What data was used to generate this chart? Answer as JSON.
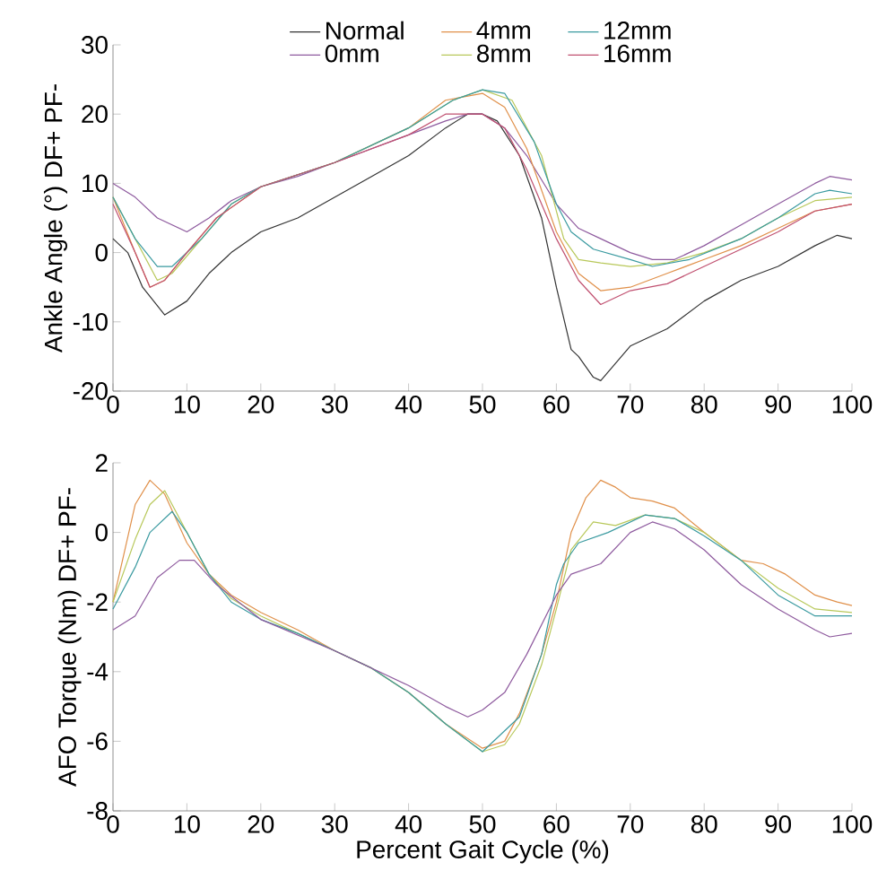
{
  "chart_data": [
    {
      "type": "line",
      "ylabel": "Ankle Angle (°) DF+ PF-",
      "xlim": [
        0,
        100
      ],
      "xticks": [
        0,
        10,
        20,
        30,
        40,
        50,
        60,
        70,
        80,
        90,
        100
      ],
      "ylim": [
        -20,
        30
      ],
      "yticks": [
        -20,
        -10,
        0,
        10,
        20,
        30
      ],
      "legend": "top",
      "line_style": "solid",
      "marker": "none",
      "series": [
        {
          "name": "Normal",
          "color": "#333333",
          "x": [
            0,
            2,
            4,
            7,
            10,
            13,
            16,
            20,
            25,
            30,
            35,
            40,
            45,
            48,
            50,
            52,
            55,
            58,
            60,
            62,
            63,
            65,
            66,
            68,
            70,
            75,
            80,
            85,
            90,
            95,
            98,
            100
          ],
          "values": [
            2,
            0,
            -5,
            -9,
            -7,
            -3,
            0,
            3,
            5,
            8,
            11,
            14,
            18,
            20,
            20,
            19,
            14,
            5,
            -5,
            -14,
            -15,
            -18,
            -18.5,
            -16,
            -13.5,
            -11,
            -7,
            -4,
            -2,
            1,
            2.5,
            2
          ]
        },
        {
          "name": "0mm",
          "color": "#8e5a9e",
          "x": [
            0,
            3,
            6,
            10,
            13,
            16,
            20,
            25,
            30,
            35,
            40,
            45,
            48,
            50,
            53,
            56,
            60,
            63,
            66,
            70,
            73,
            76,
            80,
            85,
            90,
            95,
            97,
            100
          ],
          "values": [
            10,
            8,
            5,
            3,
            5,
            7.5,
            9.5,
            11,
            13,
            15,
            17,
            19,
            20,
            20,
            18,
            14,
            7,
            3.5,
            2,
            0,
            -1,
            -1,
            1,
            4,
            7,
            10,
            11,
            10.5
          ]
        },
        {
          "name": "4mm",
          "color": "#e0904a",
          "x": [
            0,
            3,
            5,
            7,
            10,
            14,
            20,
            30,
            40,
            45,
            50,
            53,
            56,
            60,
            63,
            66,
            70,
            75,
            80,
            85,
            90,
            95,
            100
          ],
          "values": [
            8,
            0,
            -5,
            -4,
            0,
            5,
            9.5,
            13,
            18,
            22,
            23,
            21,
            15,
            3,
            -3,
            -5.5,
            -5,
            -3,
            -1,
            1,
            3.5,
            6,
            7
          ]
        },
        {
          "name": "8mm",
          "color": "#b8c85a",
          "x": [
            0,
            3,
            6,
            8,
            12,
            16,
            20,
            30,
            40,
            46,
            50,
            54,
            58,
            61,
            63,
            66,
            70,
            75,
            80,
            85,
            90,
            95,
            100
          ],
          "values": [
            8,
            2,
            -4,
            -3,
            2,
            7,
            9.5,
            13,
            18,
            22,
            23.5,
            22,
            14,
            2,
            -1,
            -1.5,
            -2,
            -1.5,
            0,
            2,
            5,
            7.5,
            8
          ]
        },
        {
          "name": "12mm",
          "color": "#3a9aa0",
          "x": [
            0,
            3,
            6,
            8,
            12,
            16,
            20,
            30,
            40,
            46,
            50,
            53,
            57,
            60,
            62,
            65,
            70,
            73,
            78,
            85,
            90,
            95,
            97,
            100
          ],
          "values": [
            8,
            2,
            -2,
            -2,
            2,
            7,
            9.5,
            13,
            18,
            22,
            23.5,
            23,
            16,
            7,
            3,
            0.5,
            -1,
            -2,
            -1,
            2,
            5,
            8.5,
            9,
            8.5
          ]
        },
        {
          "name": "16mm",
          "color": "#c05070",
          "x": [
            0,
            3,
            5,
            7,
            10,
            14,
            20,
            30,
            40,
            45,
            50,
            53,
            56,
            60,
            63,
            66,
            70,
            75,
            80,
            85,
            90,
            95,
            100
          ],
          "values": [
            7,
            0,
            -5,
            -4,
            0,
            5,
            9.5,
            13,
            17,
            20,
            20,
            18,
            12,
            2,
            -4,
            -7.5,
            -5.5,
            -4.5,
            -2,
            0.5,
            3,
            6,
            7
          ]
        }
      ]
    },
    {
      "type": "line",
      "xlabel": "Percent Gait Cycle (%)",
      "ylabel": "AFO Torque (Nm) DF+ PF-",
      "xlim": [
        0,
        100
      ],
      "xticks": [
        0,
        10,
        20,
        30,
        40,
        50,
        60,
        70,
        80,
        90,
        100
      ],
      "ylim": [
        -8,
        2
      ],
      "yticks": [
        -8,
        -6,
        -4,
        -2,
        0,
        2
      ],
      "line_style": "solid",
      "marker": "none",
      "series": [
        {
          "color": "#e0904a",
          "x": [
            0,
            3,
            5,
            7,
            10,
            13,
            16,
            20,
            25,
            30,
            35,
            40,
            45,
            50,
            53,
            55,
            58,
            60,
            62,
            64,
            66,
            68,
            70,
            73,
            76,
            80,
            85,
            88,
            91,
            95,
            98,
            100
          ],
          "values": [
            -2,
            0.8,
            1.5,
            1.1,
            -0.3,
            -1.2,
            -1.8,
            -2.3,
            -2.8,
            -3.4,
            -3.9,
            -4.6,
            -5.5,
            -6.2,
            -6,
            -5.2,
            -3.5,
            -2,
            0,
            1,
            1.5,
            1.3,
            1,
            0.9,
            0.7,
            0,
            -0.8,
            -0.9,
            -1.2,
            -1.8,
            -2,
            -2.1
          ]
        },
        {
          "color": "#b8c85a",
          "x": [
            0,
            3,
            5,
            7,
            10,
            13,
            16,
            20,
            25,
            30,
            35,
            40,
            45,
            50,
            53,
            55,
            58,
            60,
            62,
            65,
            68,
            72,
            76,
            80,
            85,
            90,
            95,
            100
          ],
          "values": [
            -2,
            -0.2,
            0.8,
            1.2,
            0,
            -1.2,
            -1.9,
            -2.4,
            -2.9,
            -3.4,
            -3.9,
            -4.6,
            -5.5,
            -6.3,
            -6.1,
            -5.5,
            -3.8,
            -2.2,
            -0.5,
            0.3,
            0.2,
            0.5,
            0.4,
            0,
            -0.8,
            -1.6,
            -2.2,
            -2.3
          ]
        },
        {
          "color": "#3a9aa0",
          "x": [
            0,
            3,
            5,
            8,
            10,
            13,
            16,
            20,
            25,
            30,
            35,
            40,
            45,
            50,
            55,
            58,
            60,
            61,
            63,
            67,
            72,
            76,
            80,
            85,
            90,
            95,
            100
          ],
          "values": [
            -2.2,
            -1,
            0,
            0.6,
            0,
            -1.2,
            -2,
            -2.5,
            -2.9,
            -3.4,
            -3.9,
            -4.6,
            -5.5,
            -6.3,
            -5.3,
            -3.5,
            -1.5,
            -0.9,
            -0.3,
            0,
            0.5,
            0.4,
            -0.1,
            -0.8,
            -1.8,
            -2.4,
            -2.4
          ]
        },
        {
          "color": "#8e5a9e",
          "x": [
            0,
            3,
            6,
            9,
            11,
            14,
            20,
            30,
            40,
            45,
            48,
            50,
            53,
            56,
            60,
            62,
            66,
            70,
            73,
            76,
            80,
            85,
            90,
            95,
            97,
            100
          ],
          "values": [
            -2.8,
            -2.4,
            -1.3,
            -0.8,
            -0.8,
            -1.5,
            -2.5,
            -3.4,
            -4.4,
            -5,
            -5.3,
            -5.1,
            -4.6,
            -3.5,
            -1.8,
            -1.2,
            -0.9,
            0,
            0.3,
            0.1,
            -0.5,
            -1.5,
            -2.2,
            -2.8,
            -3,
            -2.9
          ]
        }
      ]
    }
  ]
}
